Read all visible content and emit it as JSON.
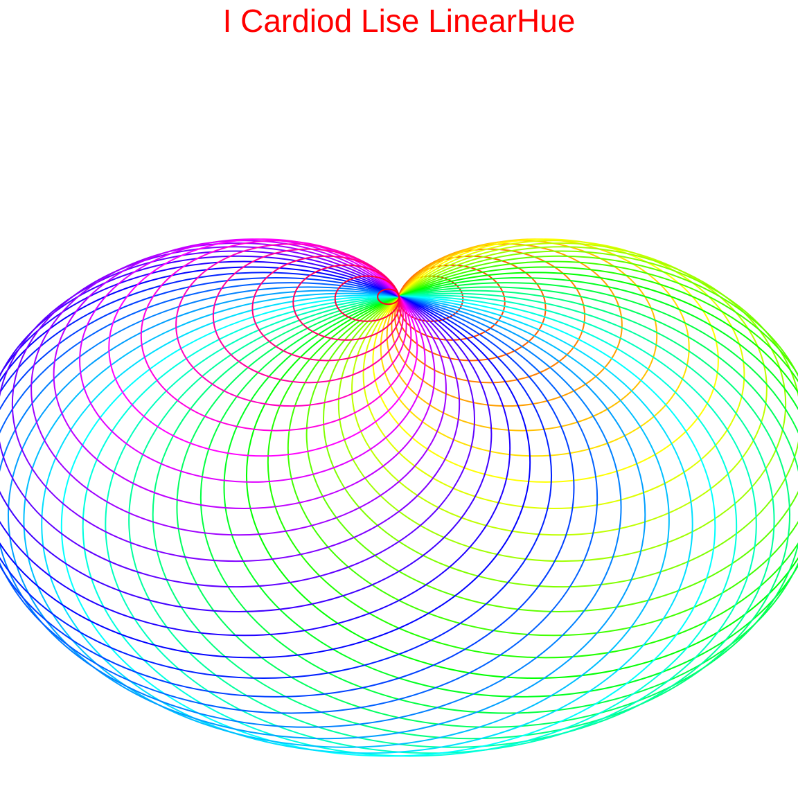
{
  "title": "I Cardiod Lise LinearHue",
  "colors": {
    "title": "#ff0000",
    "background": "#ffffff"
  },
  "figure": {
    "type": "cardioid-circle-family",
    "description_free": true,
    "circle_count": 48,
    "palette": "linear-hue"
  }
}
